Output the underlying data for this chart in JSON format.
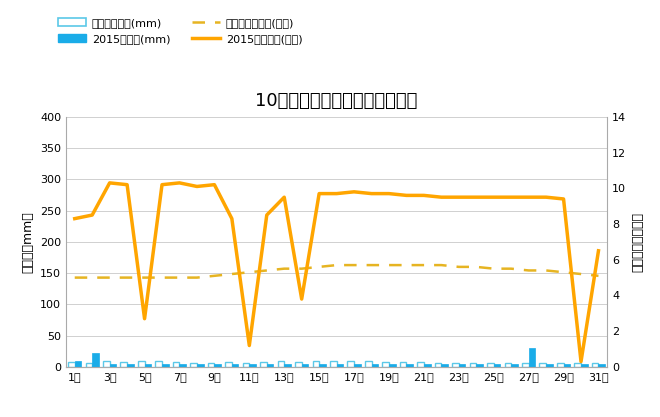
{
  "title": "10月降水量・日照時間（日別）",
  "days": [
    1,
    2,
    3,
    4,
    5,
    6,
    7,
    8,
    9,
    10,
    11,
    12,
    13,
    14,
    15,
    16,
    17,
    18,
    19,
    20,
    21,
    22,
    23,
    24,
    25,
    26,
    27,
    28,
    29,
    30,
    31
  ],
  "precip_avg": [
    8,
    7,
    9,
    8,
    10,
    9,
    8,
    7,
    6,
    8,
    7,
    8,
    9,
    8,
    9,
    9,
    9,
    9,
    8,
    8,
    8,
    7,
    7,
    7,
    7,
    7,
    7,
    7,
    7,
    7,
    7
  ],
  "precip_2015": [
    10,
    22,
    5,
    5,
    5,
    5,
    5,
    5,
    5,
    4,
    5,
    5,
    5,
    5,
    5,
    5,
    5,
    5,
    5,
    5,
    5,
    5,
    5,
    5,
    5,
    5,
    30,
    5,
    5,
    5,
    5
  ],
  "sunshine_avg": [
    5.0,
    5.0,
    5.0,
    5.0,
    5.0,
    5.0,
    5.0,
    5.0,
    5.1,
    5.2,
    5.3,
    5.4,
    5.5,
    5.5,
    5.6,
    5.7,
    5.7,
    5.7,
    5.7,
    5.7,
    5.7,
    5.7,
    5.6,
    5.6,
    5.5,
    5.5,
    5.4,
    5.4,
    5.3,
    5.2,
    5.1
  ],
  "sunshine_2015": [
    8.3,
    8.5,
    10.3,
    10.2,
    2.7,
    10.2,
    10.3,
    10.1,
    10.2,
    8.3,
    1.2,
    8.5,
    9.5,
    3.8,
    9.7,
    9.7,
    9.8,
    9.7,
    9.7,
    9.6,
    9.6,
    9.5,
    9.5,
    9.5,
    9.5,
    9.5,
    9.5,
    9.5,
    9.4,
    0.3,
    6.5
  ],
  "ylabel_left": "降水量（mm）",
  "ylabel_right": "日照時間（時間）",
  "ylim_left": [
    0,
    400
  ],
  "ylim_right": [
    0,
    14
  ],
  "yticks_left": [
    0,
    50,
    100,
    150,
    200,
    250,
    300,
    350,
    400
  ],
  "yticks_right": [
    0,
    2,
    4,
    6,
    8,
    10,
    12,
    14
  ],
  "legend_labels": [
    "降水量平年値(mm)",
    "2015降水量(mm)",
    "日照時間平年値(時間)",
    "2015日照時間(時間)"
  ],
  "precip_avg_color": "#5bc8e8",
  "precip_2015_color": "#1aace8",
  "sunshine_avg_color": "#e6b422",
  "sunshine_2015_color": "#ffa500",
  "background_color": "#ffffff",
  "grid_color": "#d0d0d0",
  "title_fontsize": 13,
  "axis_fontsize": 8,
  "ylabel_fontsize": 9
}
